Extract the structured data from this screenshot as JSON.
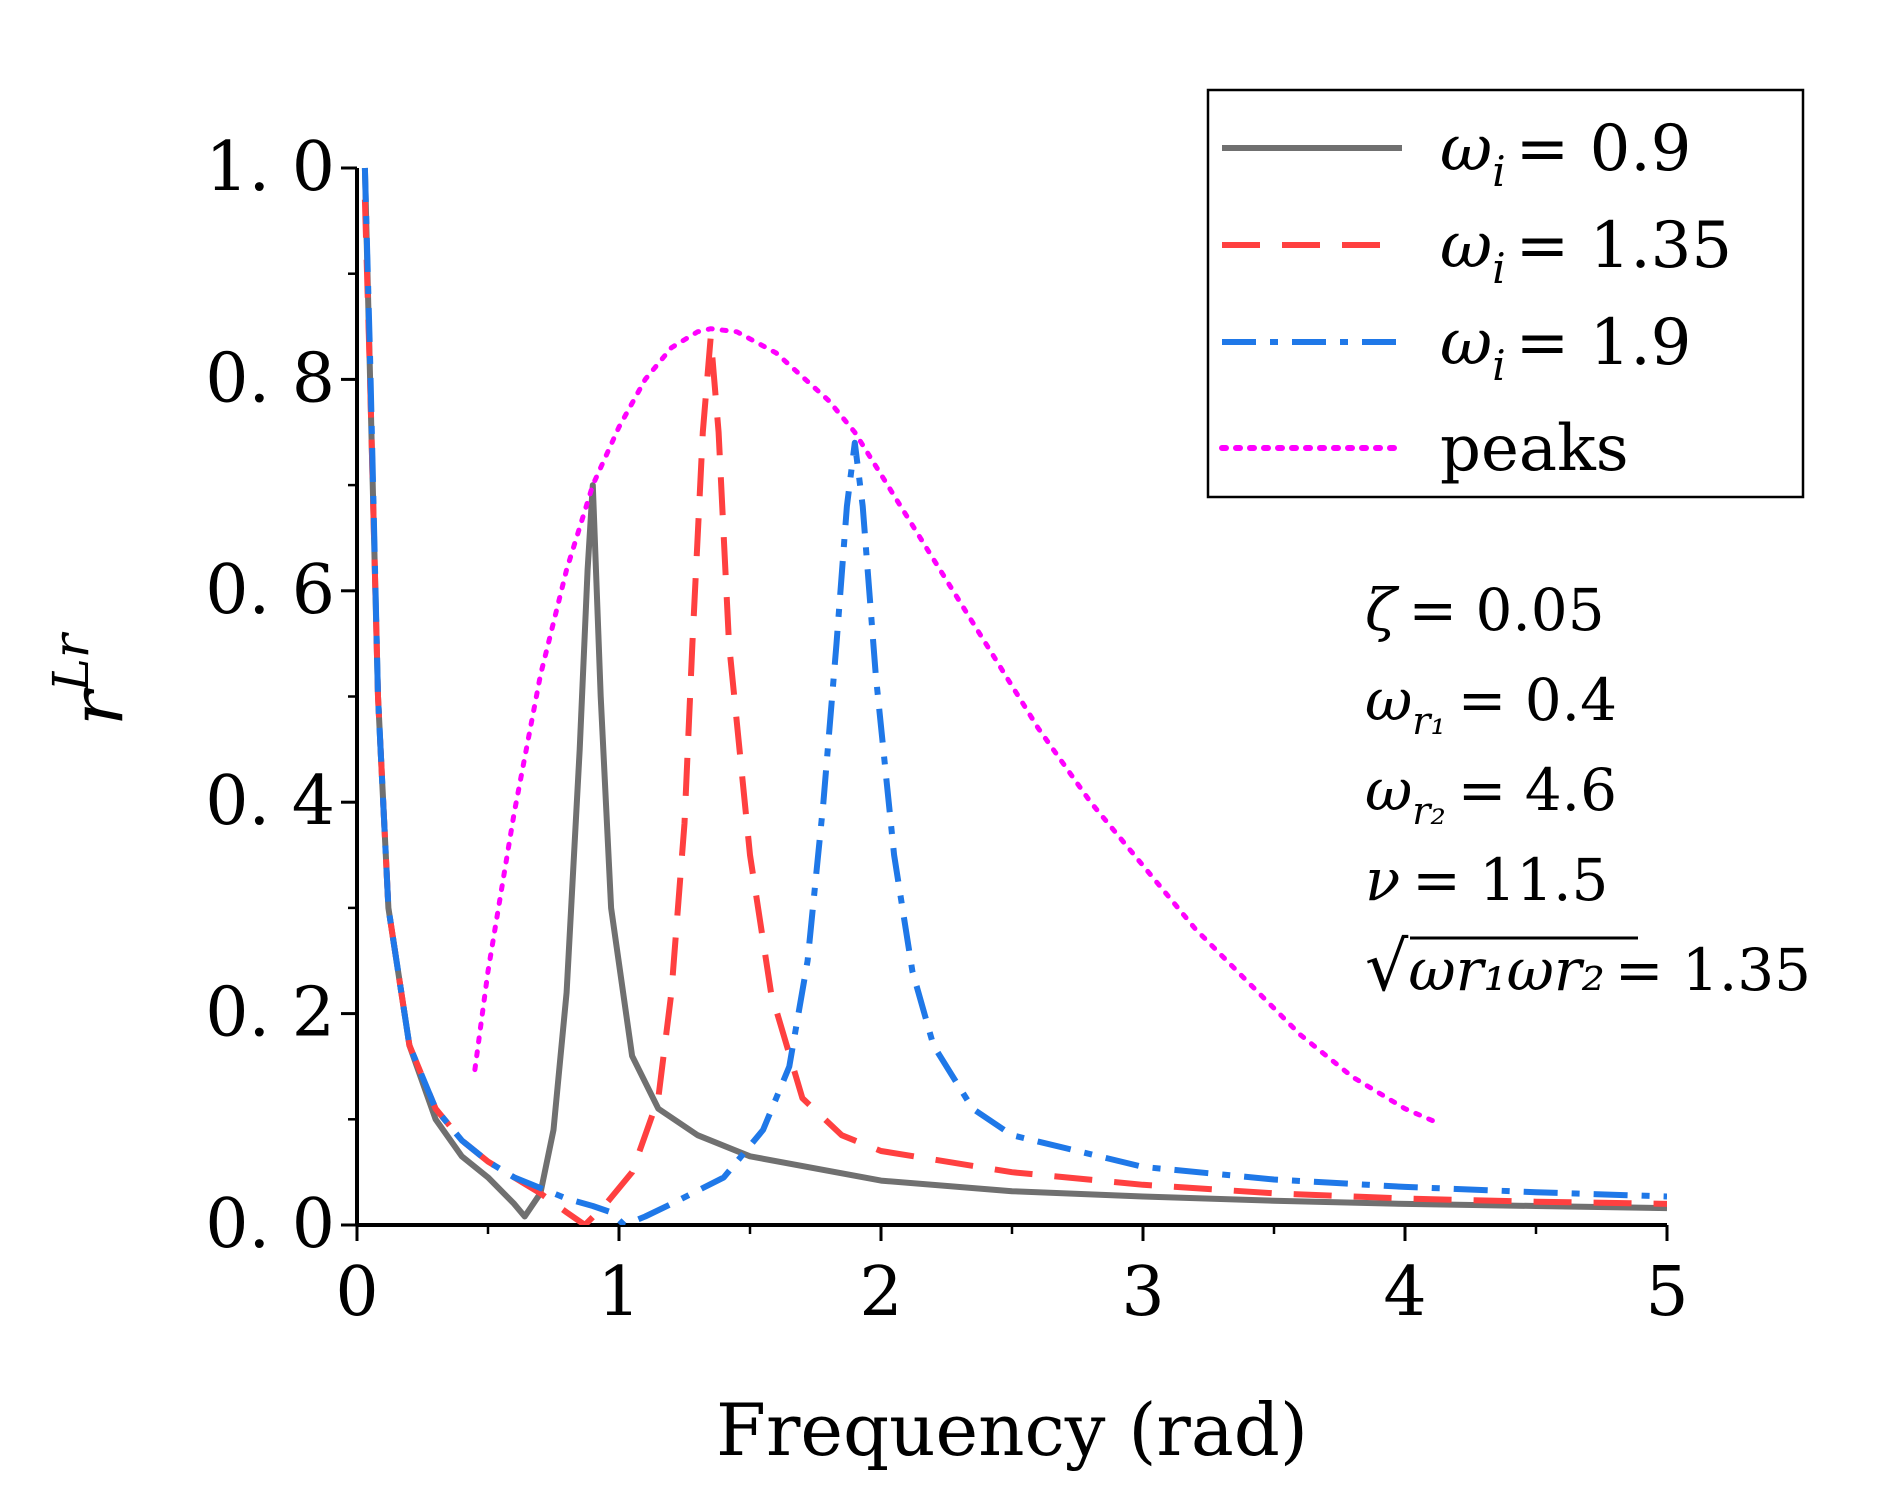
{
  "chart_data": {
    "type": "line",
    "title": "",
    "xlabel": "Frequency (rad)",
    "ylabel": "r^{Lr}",
    "xlim": [
      0,
      5
    ],
    "ylim": [
      0,
      1.0
    ],
    "xticks": [
      0,
      1,
      2,
      3,
      4,
      5
    ],
    "xtick_labels": [
      "0",
      "1",
      "2",
      "3",
      "4",
      "5"
    ],
    "yticks": [
      0,
      0.2,
      0.4,
      0.6,
      0.8,
      1.0
    ],
    "ytick_labels": [
      "0. 0",
      "0. 2",
      "0. 4",
      "0. 6",
      "0. 8",
      "1. 0"
    ],
    "grid": false,
    "legend_position": "top-right",
    "series": [
      {
        "name": "ω_i = 0.9",
        "legend_symbol": "ω",
        "legend_sub": "i",
        "legend_value": "= 0.9",
        "color": "#707070",
        "style": "solid",
        "points": [
          [
            0.03,
            1.0
          ],
          [
            0.05,
            0.8
          ],
          [
            0.08,
            0.5
          ],
          [
            0.12,
            0.3
          ],
          [
            0.2,
            0.17
          ],
          [
            0.3,
            0.1
          ],
          [
            0.4,
            0.065
          ],
          [
            0.5,
            0.045
          ],
          [
            0.6,
            0.02
          ],
          [
            0.64,
            0.008
          ],
          [
            0.7,
            0.03
          ],
          [
            0.75,
            0.09
          ],
          [
            0.8,
            0.22
          ],
          [
            0.85,
            0.45
          ],
          [
            0.88,
            0.62
          ],
          [
            0.9,
            0.7
          ],
          [
            0.93,
            0.5
          ],
          [
            0.97,
            0.3
          ],
          [
            1.05,
            0.16
          ],
          [
            1.15,
            0.11
          ],
          [
            1.3,
            0.085
          ],
          [
            1.5,
            0.065
          ],
          [
            2.0,
            0.042
          ],
          [
            2.5,
            0.032
          ],
          [
            3.0,
            0.027
          ],
          [
            3.5,
            0.023
          ],
          [
            4.0,
            0.02
          ],
          [
            4.5,
            0.018
          ],
          [
            5.0,
            0.016
          ]
        ]
      },
      {
        "name": "ω_i = 1.35",
        "legend_symbol": "ω",
        "legend_sub": "i",
        "legend_value": "= 1.35",
        "color": "#ff4040",
        "style": "dashed",
        "points": [
          [
            0.03,
            0.97
          ],
          [
            0.05,
            0.8
          ],
          [
            0.08,
            0.5
          ],
          [
            0.12,
            0.3
          ],
          [
            0.2,
            0.17
          ],
          [
            0.3,
            0.11
          ],
          [
            0.4,
            0.08
          ],
          [
            0.5,
            0.06
          ],
          [
            0.6,
            0.045
          ],
          [
            0.7,
            0.03
          ],
          [
            0.8,
            0.012
          ],
          [
            0.87,
            0.0
          ],
          [
            0.95,
            0.02
          ],
          [
            1.05,
            0.05
          ],
          [
            1.15,
            0.12
          ],
          [
            1.2,
            0.22
          ],
          [
            1.25,
            0.38
          ],
          [
            1.28,
            0.55
          ],
          [
            1.32,
            0.75
          ],
          [
            1.35,
            0.84
          ],
          [
            1.38,
            0.75
          ],
          [
            1.42,
            0.55
          ],
          [
            1.5,
            0.35
          ],
          [
            1.58,
            0.22
          ],
          [
            1.7,
            0.12
          ],
          [
            1.85,
            0.085
          ],
          [
            2.0,
            0.07
          ],
          [
            2.5,
            0.05
          ],
          [
            3.0,
            0.038
          ],
          [
            3.5,
            0.03
          ],
          [
            4.0,
            0.025
          ],
          [
            4.5,
            0.022
          ],
          [
            5.0,
            0.02
          ]
        ]
      },
      {
        "name": "ω_i = 1.9",
        "legend_symbol": "ω",
        "legend_sub": "i",
        "legend_value": "= 1.9",
        "color": "#1f78e8",
        "style": "dashdot",
        "points": [
          [
            0.03,
            1.0
          ],
          [
            0.05,
            0.82
          ],
          [
            0.08,
            0.5
          ],
          [
            0.12,
            0.3
          ],
          [
            0.2,
            0.17
          ],
          [
            0.3,
            0.11
          ],
          [
            0.4,
            0.08
          ],
          [
            0.5,
            0.06
          ],
          [
            0.6,
            0.045
          ],
          [
            0.7,
            0.035
          ],
          [
            0.8,
            0.025
          ],
          [
            0.9,
            0.018
          ],
          [
            0.97,
            0.012
          ],
          [
            1.02,
            0.0
          ],
          [
            1.1,
            0.008
          ],
          [
            1.2,
            0.02
          ],
          [
            1.4,
            0.045
          ],
          [
            1.55,
            0.09
          ],
          [
            1.65,
            0.15
          ],
          [
            1.72,
            0.25
          ],
          [
            1.78,
            0.4
          ],
          [
            1.83,
            0.55
          ],
          [
            1.87,
            0.68
          ],
          [
            1.9,
            0.74
          ],
          [
            1.93,
            0.68
          ],
          [
            1.98,
            0.52
          ],
          [
            2.05,
            0.35
          ],
          [
            2.12,
            0.24
          ],
          [
            2.2,
            0.17
          ],
          [
            2.35,
            0.11
          ],
          [
            2.5,
            0.085
          ],
          [
            3.0,
            0.055
          ],
          [
            3.5,
            0.043
          ],
          [
            4.0,
            0.036
          ],
          [
            4.5,
            0.031
          ],
          [
            5.0,
            0.027
          ]
        ]
      },
      {
        "name": "peaks",
        "legend_symbol": "peaks",
        "legend_sub": "",
        "legend_value": "",
        "color": "#ff00ff",
        "style": "dotted",
        "points": [
          [
            0.45,
            0.147
          ],
          [
            0.5,
            0.24
          ],
          [
            0.6,
            0.39
          ],
          [
            0.7,
            0.52
          ],
          [
            0.8,
            0.62
          ],
          [
            0.9,
            0.7
          ],
          [
            1.0,
            0.755
          ],
          [
            1.1,
            0.8
          ],
          [
            1.2,
            0.83
          ],
          [
            1.3,
            0.845
          ],
          [
            1.35,
            0.848
          ],
          [
            1.45,
            0.845
          ],
          [
            1.6,
            0.825
          ],
          [
            1.8,
            0.78
          ],
          [
            1.9,
            0.75
          ],
          [
            2.0,
            0.71
          ],
          [
            2.2,
            0.63
          ],
          [
            2.4,
            0.55
          ],
          [
            2.6,
            0.47
          ],
          [
            2.8,
            0.4
          ],
          [
            3.0,
            0.34
          ],
          [
            3.2,
            0.28
          ],
          [
            3.4,
            0.23
          ],
          [
            3.6,
            0.18
          ],
          [
            3.8,
            0.14
          ],
          [
            4.0,
            0.11
          ],
          [
            4.13,
            0.096
          ]
        ]
      }
    ],
    "annotations": [
      {
        "symbol": "ζ",
        "sub": "",
        "value": "= 0.05"
      },
      {
        "symbol": "ω",
        "sub": "r₁",
        "value": "= 0.4"
      },
      {
        "symbol": "ω",
        "sub": "r₂",
        "value": "= 4.6"
      },
      {
        "symbol": "ν",
        "sub": "",
        "value": "= 11.5"
      },
      {
        "symbol": "√",
        "sub": "ωr₁ωr₂",
        "value": "= 1.35"
      }
    ]
  }
}
